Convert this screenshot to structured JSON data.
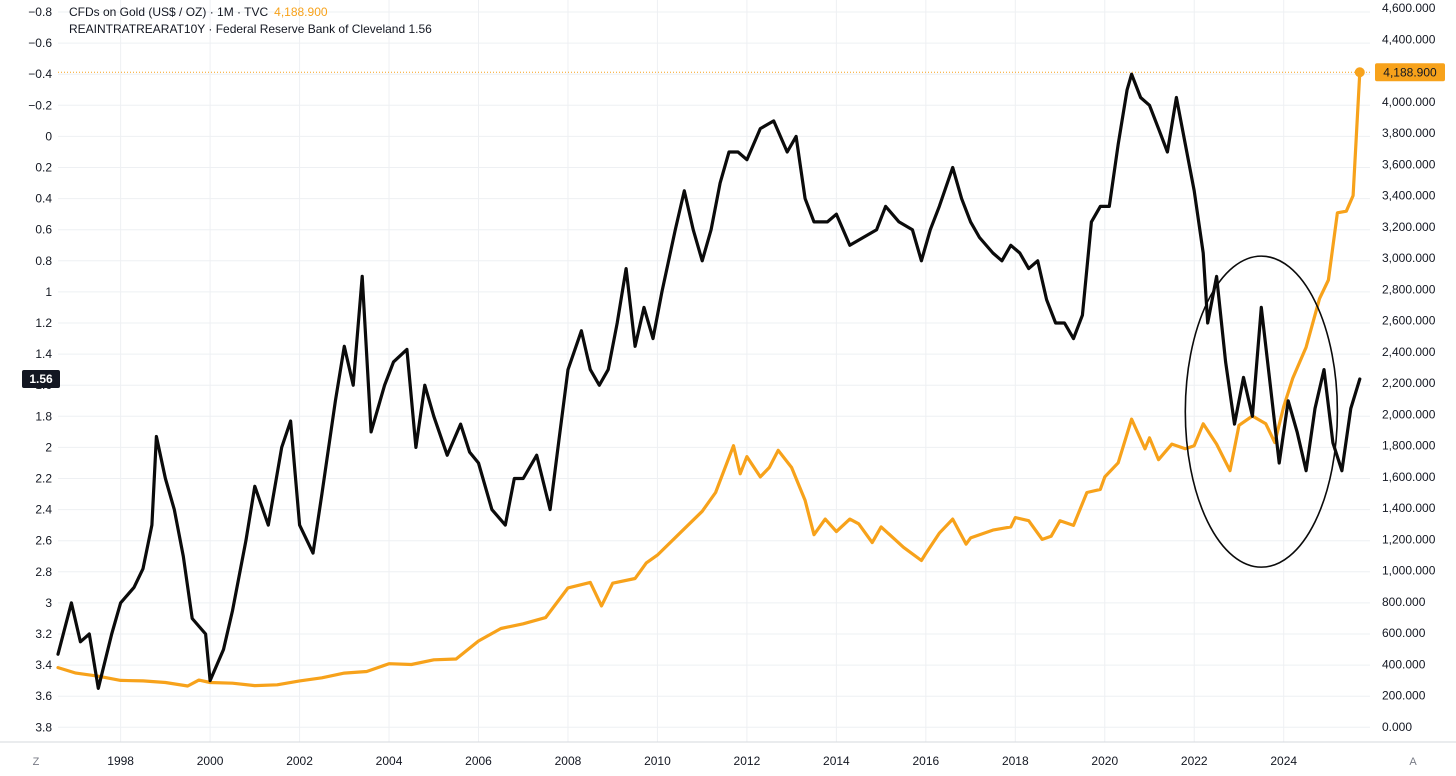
{
  "legend": {
    "gold": {
      "label": "CFDs on Gold (US$ / OZ) · 1M · TVC",
      "value": "4,188.900"
    },
    "rates": {
      "label": "REAINTRATREARAT10Y · Federal Reserve Bank of Cleveland",
      "value": "1.56"
    }
  },
  "corner": {
    "left": "Z",
    "right": "A"
  },
  "colors": {
    "gold": "#f7a21b",
    "rates": "#0b0b0b",
    "grid": "#eef0f3",
    "axis_text": "#131722"
  },
  "chart_data": {
    "type": "line",
    "title": "CFDs on Gold (US$ / OZ) vs REAINTRATREARAT10Y",
    "x_range": [
      1996.6,
      2025.75
    ],
    "x_ticks": [
      "1998",
      "2000",
      "2002",
      "2004",
      "2006",
      "2008",
      "2010",
      "2012",
      "2014",
      "2016",
      "2018",
      "2020",
      "2022",
      "2024"
    ],
    "left_axis": {
      "series": "REAINTRATREARAT10Y",
      "inverted": true,
      "range": [
        -0.8,
        3.85
      ],
      "tick_labels": [
        "−0.8",
        "−0.6",
        "−0.4",
        "−0.2",
        "0",
        "0.2",
        "0.4",
        "0.6",
        "0.8",
        "1",
        "1.2",
        "1.4",
        "1.6",
        "1.8",
        "2",
        "2.2",
        "2.4",
        "2.6",
        "2.8",
        "3",
        "3.2",
        "3.4",
        "3.6",
        "3.8"
      ],
      "last_value_label": "1.56"
    },
    "right_axis": {
      "series": "CFDs on Gold",
      "range": [
        0,
        4600
      ],
      "tick_labels": [
        "0.000",
        "200.000",
        "400.000",
        "600.000",
        "800.000",
        "1,000.000",
        "1,200.000",
        "1,400.000",
        "1,600.000",
        "1,800.000",
        "2,000.000",
        "2,200.000",
        "2,400.000",
        "2,600.000",
        "2,800.000",
        "3,000.000",
        "3,200.000",
        "3,400.000",
        "3,600.000",
        "3,800.000",
        "4,000.000",
        "4,200.000",
        "4,400.000",
        "4,600.000"
      ],
      "last_value_label": "4,188.900"
    },
    "series": [
      {
        "name": "CFDs on Gold (US$ / OZ)",
        "axis": "right",
        "points": [
          [
            1996.6,
            380
          ],
          [
            1997.0,
            345
          ],
          [
            1997.5,
            325
          ],
          [
            1998.0,
            298
          ],
          [
            1998.5,
            295
          ],
          [
            1999.0,
            285
          ],
          [
            1999.5,
            262
          ],
          [
            1999.75,
            300
          ],
          [
            2000.0,
            285
          ],
          [
            2000.5,
            280
          ],
          [
            2001.0,
            265
          ],
          [
            2001.5,
            270
          ],
          [
            2002.0,
            295
          ],
          [
            2002.5,
            315
          ],
          [
            2003.0,
            345
          ],
          [
            2003.5,
            355
          ],
          [
            2004.0,
            405
          ],
          [
            2004.5,
            400
          ],
          [
            2005.0,
            430
          ],
          [
            2005.5,
            435
          ],
          [
            2006.0,
            550
          ],
          [
            2006.5,
            630
          ],
          [
            2007.0,
            660
          ],
          [
            2007.5,
            700
          ],
          [
            2008.0,
            890
          ],
          [
            2008.5,
            925
          ],
          [
            2008.75,
            775
          ],
          [
            2009.0,
            920
          ],
          [
            2009.5,
            950
          ],
          [
            2009.75,
            1050
          ],
          [
            2010.0,
            1100
          ],
          [
            2010.5,
            1240
          ],
          [
            2011.0,
            1380
          ],
          [
            2011.3,
            1500
          ],
          [
            2011.7,
            1800
          ],
          [
            2011.85,
            1620
          ],
          [
            2012.0,
            1730
          ],
          [
            2012.3,
            1600
          ],
          [
            2012.5,
            1660
          ],
          [
            2012.7,
            1770
          ],
          [
            2013.0,
            1660
          ],
          [
            2013.3,
            1450
          ],
          [
            2013.5,
            1230
          ],
          [
            2013.75,
            1330
          ],
          [
            2014.0,
            1250
          ],
          [
            2014.3,
            1330
          ],
          [
            2014.5,
            1300
          ],
          [
            2014.8,
            1180
          ],
          [
            2015.0,
            1280
          ],
          [
            2015.5,
            1150
          ],
          [
            2015.9,
            1065
          ],
          [
            2016.0,
            1110
          ],
          [
            2016.3,
            1240
          ],
          [
            2016.6,
            1330
          ],
          [
            2016.9,
            1170
          ],
          [
            2017.0,
            1210
          ],
          [
            2017.5,
            1260
          ],
          [
            2017.9,
            1280
          ],
          [
            2018.0,
            1340
          ],
          [
            2018.3,
            1320
          ],
          [
            2018.6,
            1200
          ],
          [
            2018.8,
            1220
          ],
          [
            2019.0,
            1320
          ],
          [
            2019.3,
            1290
          ],
          [
            2019.6,
            1500
          ],
          [
            2019.9,
            1520
          ],
          [
            2020.0,
            1600
          ],
          [
            2020.3,
            1690
          ],
          [
            2020.6,
            1970
          ],
          [
            2020.9,
            1780
          ],
          [
            2021.0,
            1850
          ],
          [
            2021.2,
            1710
          ],
          [
            2021.5,
            1810
          ],
          [
            2021.8,
            1780
          ],
          [
            2022.0,
            1800
          ],
          [
            2022.2,
            1940
          ],
          [
            2022.5,
            1810
          ],
          [
            2022.8,
            1640
          ],
          [
            2023.0,
            1930
          ],
          [
            2023.3,
            1990
          ],
          [
            2023.6,
            1940
          ],
          [
            2023.8,
            1820
          ],
          [
            2024.0,
            2050
          ],
          [
            2024.2,
            2230
          ],
          [
            2024.5,
            2430
          ],
          [
            2024.8,
            2740
          ],
          [
            2025.0,
            2860
          ],
          [
            2025.2,
            3290
          ],
          [
            2025.4,
            3300
          ],
          [
            2025.55,
            3400
          ],
          [
            2025.7,
            4188.9
          ]
        ]
      },
      {
        "name": "REAINTRATREARAT10Y",
        "axis": "left",
        "points": [
          [
            1996.6,
            3.33
          ],
          [
            1996.9,
            3.0
          ],
          [
            1997.1,
            3.25
          ],
          [
            1997.3,
            3.2
          ],
          [
            1997.5,
            3.55
          ],
          [
            1997.8,
            3.2
          ],
          [
            1998.0,
            3.0
          ],
          [
            1998.3,
            2.9
          ],
          [
            1998.5,
            2.78
          ],
          [
            1998.7,
            2.5
          ],
          [
            1998.8,
            1.93
          ],
          [
            1999.0,
            2.2
          ],
          [
            1999.2,
            2.4
          ],
          [
            1999.4,
            2.7
          ],
          [
            1999.6,
            3.1
          ],
          [
            1999.9,
            3.2
          ],
          [
            2000.0,
            3.5
          ],
          [
            2000.3,
            3.3
          ],
          [
            2000.5,
            3.05
          ],
          [
            2000.8,
            2.6
          ],
          [
            2001.0,
            2.25
          ],
          [
            2001.3,
            2.5
          ],
          [
            2001.6,
            2.0
          ],
          [
            2001.8,
            1.83
          ],
          [
            2002.0,
            2.5
          ],
          [
            2002.3,
            2.68
          ],
          [
            2002.5,
            2.3
          ],
          [
            2002.8,
            1.7
          ],
          [
            2003.0,
            1.35
          ],
          [
            2003.2,
            1.6
          ],
          [
            2003.4,
            0.9
          ],
          [
            2003.6,
            1.9
          ],
          [
            2003.9,
            1.6
          ],
          [
            2004.1,
            1.45
          ],
          [
            2004.4,
            1.37
          ],
          [
            2004.6,
            2.0
          ],
          [
            2004.8,
            1.6
          ],
          [
            2005.0,
            1.8
          ],
          [
            2005.3,
            2.05
          ],
          [
            2005.6,
            1.85
          ],
          [
            2005.8,
            2.03
          ],
          [
            2006.0,
            2.1
          ],
          [
            2006.3,
            2.4
          ],
          [
            2006.6,
            2.5
          ],
          [
            2006.8,
            2.2
          ],
          [
            2007.0,
            2.2
          ],
          [
            2007.3,
            2.05
          ],
          [
            2007.6,
            2.4
          ],
          [
            2007.8,
            1.95
          ],
          [
            2008.0,
            1.5
          ],
          [
            2008.3,
            1.25
          ],
          [
            2008.5,
            1.5
          ],
          [
            2008.7,
            1.6
          ],
          [
            2008.9,
            1.5
          ],
          [
            2009.1,
            1.2
          ],
          [
            2009.3,
            0.85
          ],
          [
            2009.5,
            1.35
          ],
          [
            2009.7,
            1.1
          ],
          [
            2009.9,
            1.3
          ],
          [
            2010.1,
            1.0
          ],
          [
            2010.4,
            0.6
          ],
          [
            2010.6,
            0.35
          ],
          [
            2010.8,
            0.6
          ],
          [
            2011.0,
            0.8
          ],
          [
            2011.2,
            0.6
          ],
          [
            2011.4,
            0.3
          ],
          [
            2011.6,
            0.1
          ],
          [
            2011.8,
            0.1
          ],
          [
            2012.0,
            0.15
          ],
          [
            2012.3,
            -0.05
          ],
          [
            2012.6,
            -0.1
          ],
          [
            2012.9,
            0.1
          ],
          [
            2013.1,
            0.0
          ],
          [
            2013.3,
            0.4
          ],
          [
            2013.5,
            0.55
          ],
          [
            2013.8,
            0.55
          ],
          [
            2014.0,
            0.5
          ],
          [
            2014.3,
            0.7
          ],
          [
            2014.6,
            0.65
          ],
          [
            2014.9,
            0.6
          ],
          [
            2015.1,
            0.45
          ],
          [
            2015.4,
            0.55
          ],
          [
            2015.7,
            0.6
          ],
          [
            2015.9,
            0.8
          ],
          [
            2016.1,
            0.6
          ],
          [
            2016.3,
            0.45
          ],
          [
            2016.6,
            0.2
          ],
          [
            2016.8,
            0.4
          ],
          [
            2017.0,
            0.55
          ],
          [
            2017.2,
            0.65
          ],
          [
            2017.5,
            0.75
          ],
          [
            2017.7,
            0.8
          ],
          [
            2017.9,
            0.7
          ],
          [
            2018.1,
            0.75
          ],
          [
            2018.3,
            0.85
          ],
          [
            2018.5,
            0.8
          ],
          [
            2018.7,
            1.05
          ],
          [
            2018.9,
            1.2
          ],
          [
            2019.1,
            1.2
          ],
          [
            2019.3,
            1.3
          ],
          [
            2019.5,
            1.15
          ],
          [
            2019.7,
            0.55
          ],
          [
            2019.9,
            0.45
          ],
          [
            2020.1,
            0.45
          ],
          [
            2020.3,
            0.05
          ],
          [
            2020.5,
            -0.3
          ],
          [
            2020.6,
            -0.4
          ],
          [
            2020.8,
            -0.25
          ],
          [
            2021.0,
            -0.2
          ],
          [
            2021.2,
            -0.05
          ],
          [
            2021.4,
            0.1
          ],
          [
            2021.6,
            -0.25
          ],
          [
            2021.8,
            0.05
          ],
          [
            2022.0,
            0.35
          ],
          [
            2022.2,
            0.75
          ],
          [
            2022.3,
            1.2
          ],
          [
            2022.5,
            0.9
          ],
          [
            2022.7,
            1.45
          ],
          [
            2022.9,
            1.85
          ],
          [
            2023.1,
            1.55
          ],
          [
            2023.3,
            1.8
          ],
          [
            2023.5,
            1.1
          ],
          [
            2023.7,
            1.6
          ],
          [
            2023.9,
            2.1
          ],
          [
            2024.1,
            1.7
          ],
          [
            2024.3,
            1.9
          ],
          [
            2024.5,
            2.15
          ],
          [
            2024.7,
            1.75
          ],
          [
            2024.9,
            1.5
          ],
          [
            2025.1,
            1.97
          ],
          [
            2025.3,
            2.15
          ],
          [
            2025.5,
            1.75
          ],
          [
            2025.7,
            1.56
          ]
        ]
      }
    ],
    "annotations": [
      {
        "type": "circle",
        "label": "",
        "center": [
          2023.5,
          1.77
        ],
        "radius_x_years": 1.7,
        "radius_y_units": 1.0
      },
      {
        "type": "price_line",
        "series": "CFDs on Gold (US$ / OZ)",
        "value": 4188.9
      }
    ]
  }
}
